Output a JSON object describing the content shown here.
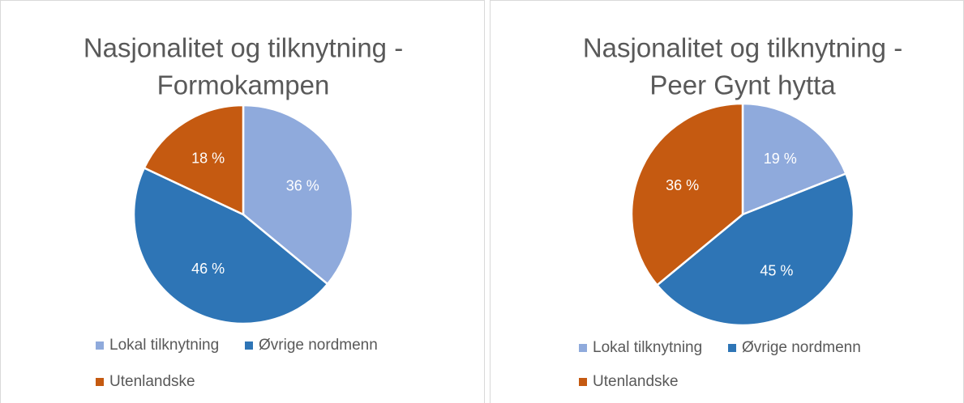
{
  "chart_data": [
    {
      "type": "pie",
      "title": [
        "Nasjonalitet og tilknytning -",
        "Formokampen"
      ],
      "categories": [
        "Lokal tilknytning",
        "Øvrige nordmenn",
        "Utenlandske"
      ],
      "values": [
        36,
        46,
        18
      ],
      "value_labels": [
        "36 %",
        "46 %",
        "18 %"
      ],
      "colors": [
        "#8faadc",
        "#2e75b6",
        "#c55a11"
      ],
      "legend": "bottom"
    },
    {
      "type": "pie",
      "title": [
        "Nasjonalitet og tilknytning -",
        "Peer Gynt hytta"
      ],
      "categories": [
        "Lokal tilknytning",
        "Øvrige nordmenn",
        "Utenlandske"
      ],
      "values": [
        19,
        45,
        36
      ],
      "value_labels": [
        "19 %",
        "45 %",
        "36 %"
      ],
      "colors": [
        "#8faadc",
        "#2e75b6",
        "#c55a11"
      ],
      "legend": "bottom"
    }
  ]
}
